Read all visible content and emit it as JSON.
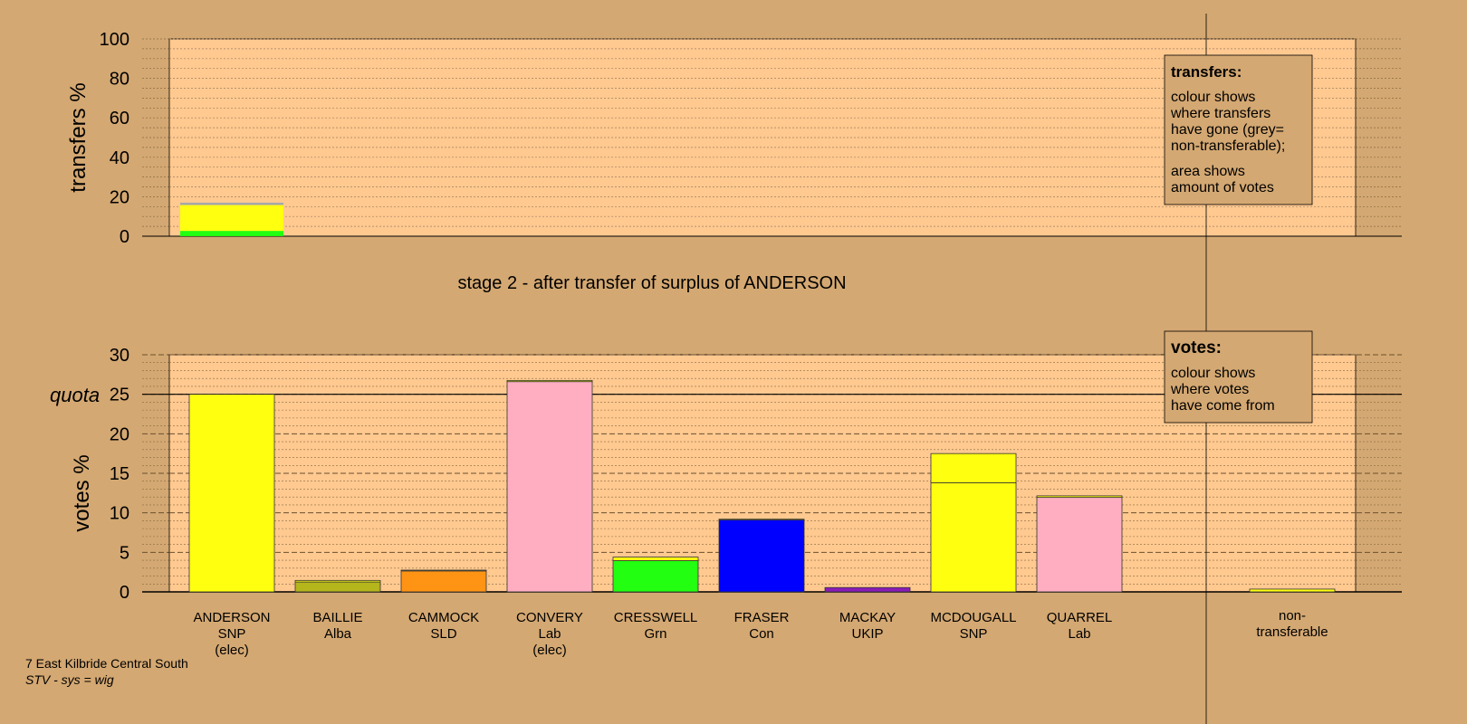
{
  "colors": {
    "background": "#d4a872",
    "plot_area": "#ffc990",
    "legend_box": "#d4a872",
    "snp": "#ffff10",
    "alba": "#b5b51c",
    "sld": "#ff9414",
    "lab": "#ffaec2",
    "grn": "#22ff10",
    "con": "#0000ff",
    "ukip": "#8a1cb8",
    "nontransferable": "#a8a8a8"
  },
  "footer": {
    "ward": "7 East Kilbride Central South",
    "system": "STV - sys = wig"
  },
  "chart_data": [
    {
      "type": "bar",
      "name": "transfers",
      "ylabel": "transfers %",
      "ylim": [
        0,
        100
      ],
      "yticks": [
        0,
        20,
        40,
        60,
        80,
        100
      ],
      "grid": true,
      "title": "stage 2 - after transfer of surplus of ANDERSON",
      "legend": {
        "title": "transfers:",
        "lines1": [
          "colour shows",
          "where transfers",
          "have gone (grey=",
          "non-transferable);"
        ],
        "lines2": [
          "area shows",
          "amount of votes"
        ]
      },
      "stack": [
        {
          "party": "grn",
          "value": 2.7
        },
        {
          "party": "snp",
          "value": 13.1
        },
        {
          "party": "nontransferable",
          "value": 1.2
        }
      ]
    },
    {
      "type": "bar",
      "name": "votes",
      "ylabel": "votes %",
      "ylim": [
        0,
        30
      ],
      "yticks": [
        0,
        5,
        10,
        15,
        20,
        25,
        30
      ],
      "quota": 25,
      "quota_label": "quota",
      "grid": true,
      "legend": {
        "title": "votes:",
        "lines": [
          "colour shows",
          "where votes",
          "have come from"
        ]
      },
      "categories": [
        {
          "name": "ANDERSON",
          "party": "SNP",
          "note": "(elec)",
          "segments": [
            {
              "party": "snp",
              "value": 25.0
            }
          ]
        },
        {
          "name": "BAILLIE",
          "party": "Alba",
          "note": "",
          "segments": [
            {
              "party": "alba",
              "value": 1.25
            },
            {
              "party": "snp",
              "value": 0.2
            }
          ]
        },
        {
          "name": "CAMMOCK",
          "party": "SLD",
          "note": "",
          "segments": [
            {
              "party": "sld",
              "value": 2.65
            },
            {
              "party": "snp",
              "value": 0.1
            }
          ]
        },
        {
          "name": "CONVERY",
          "party": "Lab",
          "note": "(elec)",
          "segments": [
            {
              "party": "lab",
              "value": 26.6
            },
            {
              "party": "snp",
              "value": 0.15
            }
          ]
        },
        {
          "name": "CRESSWELL",
          "party": "Grn",
          "note": "",
          "segments": [
            {
              "party": "grn",
              "value": 3.95
            },
            {
              "party": "snp",
              "value": 0.45
            }
          ]
        },
        {
          "name": "FRASER",
          "party": "Con",
          "note": "",
          "segments": [
            {
              "party": "con",
              "value": 9.1
            },
            {
              "party": "snp",
              "value": 0.1
            }
          ]
        },
        {
          "name": "MACKAY",
          "party": "UKIP",
          "note": "",
          "segments": [
            {
              "party": "ukip",
              "value": 0.55
            }
          ]
        },
        {
          "name": "MCDOUGALL",
          "party": "SNP",
          "note": "",
          "segments": [
            {
              "party": "snp",
              "value": 13.8
            },
            {
              "party": "snp",
              "value": 3.7
            }
          ]
        },
        {
          "name": "QUARREL",
          "party": "Lab",
          "note": "",
          "segments": [
            {
              "party": "lab",
              "value": 11.95
            },
            {
              "party": "snp",
              "value": 0.2
            }
          ]
        }
      ],
      "nontransferable": {
        "label_lines": [
          "non-",
          "transferable"
        ],
        "segments": [
          {
            "party": "snp",
            "value": 0.35
          }
        ]
      }
    }
  ]
}
